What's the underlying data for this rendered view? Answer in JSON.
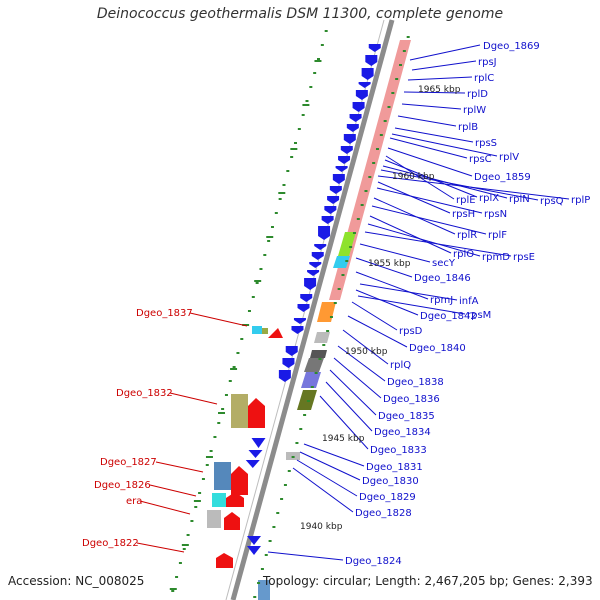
{
  "title": "Deinococcus geothermalis DSM 11300, complete genome",
  "footer": {
    "accession": "Accession: NC_008025",
    "summary": "Topology: circular; Length: 2,467,205 bp; Genes: 2,393"
  },
  "scale_labels": [
    "1965 kbp",
    "1960 kbp",
    "1955 kbp",
    "1950 kbp",
    "1945 kbp",
    "1940 kbp"
  ],
  "right_labels": [
    "Dgeo_1869",
    "rpsJ",
    "rplC",
    "rplD",
    "rplW",
    "rplB",
    "rpsS",
    "rplV",
    "rpsC",
    "Dgeo_1859",
    "rplE",
    "rplX",
    "rplN",
    "rpsQ",
    "rplP",
    "rpsH",
    "rpsN",
    "rplR",
    "rplF",
    "rplO",
    "rpmD",
    "rpsE",
    "secY",
    "Dgeo_1846",
    "rpmJ",
    "infA",
    "Dgeo_1842",
    "rpsM",
    "rpsD",
    "Dgeo_1840",
    "rplQ",
    "Dgeo_1838",
    "Dgeo_1836",
    "Dgeo_1835",
    "Dgeo_1834",
    "Dgeo_1833",
    "Dgeo_1831",
    "Dgeo_1830",
    "Dgeo_1829",
    "Dgeo_1828",
    "Dgeo_1824"
  ],
  "left_labels": [
    "Dgeo_1837",
    "Dgeo_1832",
    "Dgeo_1827",
    "Dgeo_1826",
    "era",
    "Dgeo_1822"
  ],
  "colors": {
    "forward_gene": "#1a1ae6",
    "reverse_gene": "#ee1111",
    "rna_track": "#f09a9a",
    "backbone": "#8c8c8c",
    "tick": "#2d8a2d",
    "label_blue": "#1010cc",
    "label_red": "#cc0000"
  }
}
